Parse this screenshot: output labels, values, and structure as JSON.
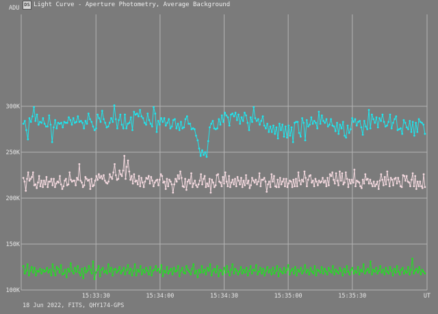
{
  "window": {
    "icon_label": "DS",
    "title": "Light Curve - Aperture Photometry, Average Background"
  },
  "footer": {
    "text": "18 Jun 2022, FITS, QHY174-GPS"
  },
  "colors": {
    "background": "#7b7b7b",
    "grid": "#b4b4b4",
    "series_cyan": "#1ee6ee",
    "series_pink": "#f3d8de",
    "series_green": "#22e022"
  },
  "chart_data": {
    "type": "line",
    "ylabel": "ADU",
    "xlabel": "UT",
    "ylim": [
      100000,
      400000
    ],
    "xlim": [
      "15:32:55",
      "15:36:05"
    ],
    "y_ticks": [
      {
        "value": 100000,
        "label": "100K"
      },
      {
        "value": 150000,
        "label": "150K"
      },
      {
        "value": 200000,
        "label": "200K"
      },
      {
        "value": 250000,
        "label": "250K"
      },
      {
        "value": 300000,
        "label": "300K"
      }
    ],
    "x_ticks": [
      "15:33:30",
      "15:34:00",
      "15:34:30",
      "15:35:00",
      "15:35:30"
    ],
    "grid": true,
    "series": [
      {
        "color": "#1ee6ee",
        "values": [
          281000,
          284000,
          274000,
          264000,
          287000,
          283000,
          289000,
          299000,
          284000,
          291000,
          280000,
          283000,
          282000,
          287000,
          281000,
          278000,
          278000,
          290000,
          280000,
          261000,
          277000,
          285000,
          276000,
          282000,
          281000,
          282000,
          277000,
          283000,
          282000,
          282000,
          288000,
          285000,
          280000,
          287000,
          282000,
          283000,
          289000,
          283000,
          284000,
          282000,
          276000,
          284000,
          281000,
          292000,
          286000,
          283000,
          278000,
          274000,
          276000,
          291000,
          287000,
          283000,
          295000,
          286000,
          282000,
          277000,
          278000,
          282000,
          287000,
          283000,
          301000,
          286000,
          276000,
          285000,
          291000,
          280000,
          276000,
          291000,
          276000,
          281000,
          282000,
          288000,
          274000,
          294000,
          291000,
          292000,
          289000,
          296000,
          289000,
          287000,
          282000,
          280000,
          292000,
          285000,
          281000,
          278000,
          299000,
          292000,
          272000,
          284000,
          280000,
          287000,
          283000,
          287000,
          279000,
          282000,
          286000,
          276000,
          278000,
          285000,
          286000,
          276000,
          281000,
          274000,
          283000,
          276000,
          277000,
          286000,
          289000,
          281000,
          281000,
          275000,
          276000,
          275000,
          268000,
          263000,
          254000,
          246000,
          252000,
          247000,
          250000,
          245000,
          262000,
          277000,
          281000,
          284000,
          276000,
          275000,
          276000,
          286000,
          280000,
          290000,
          283000,
          293000,
          290000,
          288000,
          279000,
          291000,
          292000,
          289000,
          293000,
          285000,
          291000,
          281000,
          288000,
          284000,
          293000,
          290000,
          282000,
          274000,
          288000,
          283000,
          299000,
          287000,
          284000,
          286000,
          280000,
          284000,
          289000,
          279000,
          276000,
          281000,
          272000,
          278000,
          272000,
          279000,
          270000,
          277000,
          265000,
          281000,
          274000,
          280000,
          267000,
          278000,
          266000,
          279000,
          268000,
          277000,
          261000,
          282000,
          283000,
          283000,
          271000,
          267000,
          287000,
          282000,
          263000,
          285000,
          278000,
          280000,
          288000,
          281000,
          284000,
          282000,
          276000,
          294000,
          281000,
          290000,
          284000,
          282000,
          286000,
          278000,
          280000,
          286000,
          279000,
          278000,
          273000,
          282000,
          270000,
          280000,
          276000,
          283000,
          268000,
          266000,
          279000,
          271000,
          275000,
          287000,
          283000,
          286000,
          279000,
          283000,
          284000,
          277000,
          269000,
          284000,
          278000,
          275000,
          296000,
          276000,
          291000,
          286000,
          282000,
          288000,
          277000,
          287000,
          284000,
          291000,
          283000,
          278000,
          279000,
          283000,
          291000,
          276000,
          282000,
          286000,
          289000,
          274000,
          275000,
          276000,
          270000,
          285000,
          282000,
          277000,
          275000,
          284000,
          272000,
          283000,
          268000,
          282000,
          272000,
          286000,
          283000,
          282000,
          280000,
          270000
        ],
        "x_start": "15:32:56",
        "x_end": "15:36:04"
      },
      {
        "color": "#f3d8de",
        "values": [
          222000,
          218000,
          208000,
          221000,
          228000,
          219000,
          221000,
          223000,
          228000,
          214000,
          215000,
          211000,
          217000,
          224000,
          213000,
          219000,
          212000,
          219000,
          215000,
          223000,
          212000,
          218000,
          218000,
          221000,
          214000,
          221000,
          212000,
          216000,
          218000,
          217000,
          224000,
          215000,
          210000,
          213000,
          219000,
          221000,
          214000,
          215000,
          228000,
          220000,
          218000,
          219000,
          219000,
          214000,
          222000,
          220000,
          237000,
          219000,
          217000,
          212000,
          214000,
          223000,
          221000,
          219000,
          220000,
          210000,
          221000,
          213000,
          214000,
          219000,
          224000,
          220000,
          226000,
          222000,
          224000,
          221000,
          225000,
          219000,
          217000,
          216000,
          218000,
          226000,
          223000,
          221000,
          228000,
          237000,
          225000,
          220000,
          221000,
          230000,
          226000,
          224000,
          230000,
          246000,
          221000,
          234000,
          241000,
          229000,
          220000,
          224000,
          216000,
          226000,
          218000,
          219000,
          215000,
          224000,
          213000,
          222000,
          217000,
          212000,
          218000,
          222000,
          221000,
          224000,
          216000,
          223000,
          219000,
          213000,
          217000,
          219000,
          220000,
          214000,
          220000,
          226000,
          224000,
          217000,
          218000,
          210000,
          221000,
          213000,
          220000,
          218000,
          215000,
          206000,
          215000,
          221000,
          218000,
          225000,
          221000,
          229000,
          222000,
          213000,
          212000,
          221000,
          209000,
          218000,
          220000,
          216000,
          227000,
          212000,
          216000,
          219000,
          214000,
          212000,
          215000,
          219000,
          226000,
          215000,
          221000,
          224000,
          212000,
          216000,
          213000,
          221000,
          206000,
          220000,
          217000,
          212000,
          214000,
          225000,
          226000,
          218000,
          217000,
          213000,
          223000,
          216000,
          228000,
          218000,
          213000,
          224000,
          212000,
          217000,
          220000,
          215000,
          221000,
          213000,
          223000,
          219000,
          215000,
          222000,
          212000,
          219000,
          214000,
          225000,
          216000,
          219000,
          211000,
          214000,
          222000,
          219000,
          217000,
          220000,
          215000,
          218000,
          227000,
          213000,
          220000,
          220000,
          222000,
          218000,
          207000,
          215000,
          218000,
          212000,
          226000,
          218000,
          224000,
          213000,
          212000,
          220000,
          212000,
          222000,
          215000,
          218000,
          221000,
          213000,
          221000,
          212000,
          216000,
          219000,
          218000,
          212000,
          220000,
          213000,
          221000,
          213000,
          228000,
          219000,
          215000,
          220000,
          218000,
          229000,
          222000,
          213000,
          220000,
          224000,
          225000,
          217000,
          219000,
          213000,
          221000,
          218000,
          214000,
          219000,
          217000,
          218000,
          222000,
          217000,
          219000,
          213000,
          222000,
          214000,
          226000,
          224000,
          228000,
          220000,
          216000,
          227000,
          219000,
          214000,
          229000,
          219000,
          227000,
          215000,
          217000,
          228000,
          221000,
          212000,
          220000,
          216000,
          220000,
          217000,
          231000,
          213000,
          219000,
          218000,
          217000,
          213000,
          211000,
          220000,
          216000,
          226000,
          220000,
          221000,
          216000,
          220000,
          216000,
          213000,
          218000,
          213000,
          215000,
          218000,
          210000,
          219000,
          226000,
          220000,
          214000,
          223000,
          215000,
          229000,
          220000,
          213000,
          222000,
          220000,
          214000,
          221000,
          222000,
          216000,
          222000,
          218000,
          213000,
          212000,
          225000,
          224000,
          219000,
          224000,
          218000,
          217000,
          213000,
          220000,
          227000,
          213000,
          224000,
          210000,
          218000,
          213000,
          218000,
          213000,
          211000,
          226000,
          212000
        ],
        "x_start": "15:32:56",
        "x_end": "15:36:04"
      },
      {
        "color": "#22e022",
        "values": [
          126000,
          118000,
          121000,
          128000,
          116000,
          121000,
          125000,
          119000,
          124000,
          116000,
          121000,
          120000,
          123000,
          118000,
          122000,
          120000,
          121000,
          124000,
          119000,
          122000,
          116000,
          128000,
          121000,
          116000,
          125000,
          123000,
          119000,
          127000,
          117000,
          118000,
          122000,
          114000,
          123000,
          120000,
          129000,
          121000,
          118000,
          124000,
          120000,
          126000,
          119000,
          116000,
          123000,
          113000,
          124000,
          119000,
          121000,
          126000,
          122000,
          118000,
          131000,
          112000,
          119000,
          122000,
          126000,
          115000,
          122000,
          124000,
          119000,
          121000,
          118000,
          128000,
          120000,
          124000,
          116000,
          122000,
          123000,
          119000,
          121000,
          125000,
          118000,
          121000,
          124000,
          117000,
          122000,
          127000,
          118000,
          123000,
          116000,
          121000,
          128000,
          116000,
          122000,
          120000,
          126000,
          117000,
          122000,
          119000,
          124000,
          121000,
          117000,
          125000,
          116000,
          121000,
          122000,
          126000,
          121000,
          123000,
          119000,
          127000,
          115000,
          121000,
          119000,
          125000,
          118000,
          121000,
          123000,
          117000,
          124000,
          120000,
          121000,
          126000,
          115000,
          121000,
          124000,
          119000,
          118000,
          126000,
          122000,
          120000,
          117000,
          123000,
          128000,
          118000,
          121000,
          114000,
          122000,
          119000,
          126000,
          119000,
          122000,
          117000,
          124000,
          121000,
          128000,
          116000,
          121000,
          123000,
          119000,
          126000,
          115000,
          122000,
          121000,
          117000,
          124000,
          119000,
          126000,
          120000,
          116000,
          122000,
          128000,
          118000,
          123000,
          121000,
          117000,
          120000,
          125000,
          118000,
          122000,
          119000,
          124000,
          116000,
          121000,
          126000,
          118000,
          122000,
          121000,
          127000,
          117000,
          120000,
          124000,
          118000,
          123000,
          116000,
          121000,
          125000,
          119000,
          122000,
          117000,
          124000,
          118000,
          121000,
          126000,
          115000,
          123000,
          120000,
          118000,
          124000,
          119000,
          122000,
          127000,
          117000,
          121000,
          123000,
          118000,
          125000,
          116000,
          122000,
          120000,
          124000,
          118000,
          121000,
          127000,
          119000,
          122000,
          117000,
          124000,
          120000,
          118000,
          126000,
          116000,
          122000,
          121000,
          119000,
          125000,
          118000,
          123000,
          120000,
          117000,
          124000,
          121000,
          119000,
          126000,
          117000,
          122000,
          120000,
          118000,
          124000,
          121000,
          116000,
          123000,
          119000,
          126000,
          120000,
          117000,
          122000,
          124000,
          118000,
          121000,
          119000,
          125000,
          117000,
          122000,
          120000,
          128000,
          118000,
          121000,
          123000,
          119000,
          131000,
          117000,
          122000,
          120000,
          124000,
          118000,
          121000,
          126000,
          119000,
          122000,
          117000,
          124000,
          120000,
          118000,
          125000,
          121000,
          116000,
          123000,
          119000,
          126000,
          120000,
          117000,
          122000,
          124000,
          118000,
          121000,
          119000,
          125000,
          117000,
          122000,
          134000,
          118000,
          121000,
          123000,
          119000,
          125000,
          117000,
          122000,
          120000,
          118000
        ],
        "x_start": "15:32:56",
        "x_end": "15:36:04"
      }
    ]
  }
}
